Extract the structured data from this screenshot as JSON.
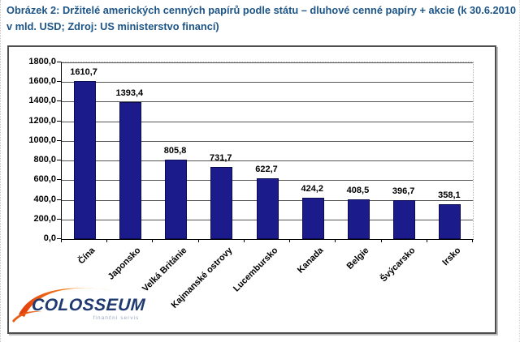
{
  "doc": {
    "title": "Obrázek 2: Držitelé amerických cenných papírů podle státu – dluhové cenné papíry + akcie (k 30.6.2010 v mld. USD; Zdroj: US ministerstvo financí)"
  },
  "colors": {
    "title_text": "#1d5586",
    "bar_fill": "#1b1b8c",
    "gridline": "#555555",
    "axis_text": "#000000",
    "logo_text": "#1e3a70",
    "logo_swoosh_dark": "#e23c09",
    "logo_swoosh_light": "#fbb03b"
  },
  "chart_data": {
    "type": "bar",
    "title": "",
    "xlabel": "",
    "ylabel": "",
    "categories": [
      "Čína",
      "Japonsko",
      "Velká Británie",
      "Kajmanské ostrovy",
      "Lucembursko",
      "Kanada",
      "Belgie",
      "Švýcarsko",
      "Irsko"
    ],
    "values": [
      1610.7,
      1393.4,
      805.8,
      731.7,
      622.7,
      424.2,
      408.5,
      396.7,
      358.1
    ],
    "value_labels": [
      "1610,7",
      "1393,4",
      "805,8",
      "731,7",
      "622,7",
      "424,2",
      "408,5",
      "396,7",
      "358,1"
    ],
    "ylim": [
      0,
      1800
    ],
    "y_step": 200,
    "y_tick_labels": [
      "1800,0",
      "1600,0",
      "1400,0",
      "1200,0",
      "1000,0",
      "800,0",
      "600,0",
      "400,0",
      "200,0",
      "0,0"
    ],
    "grid": true,
    "legend_position": "none",
    "bar_color": "#1b1b8c"
  },
  "logo": {
    "name": "COLOSSEUM",
    "tagline": "finanční servis"
  }
}
